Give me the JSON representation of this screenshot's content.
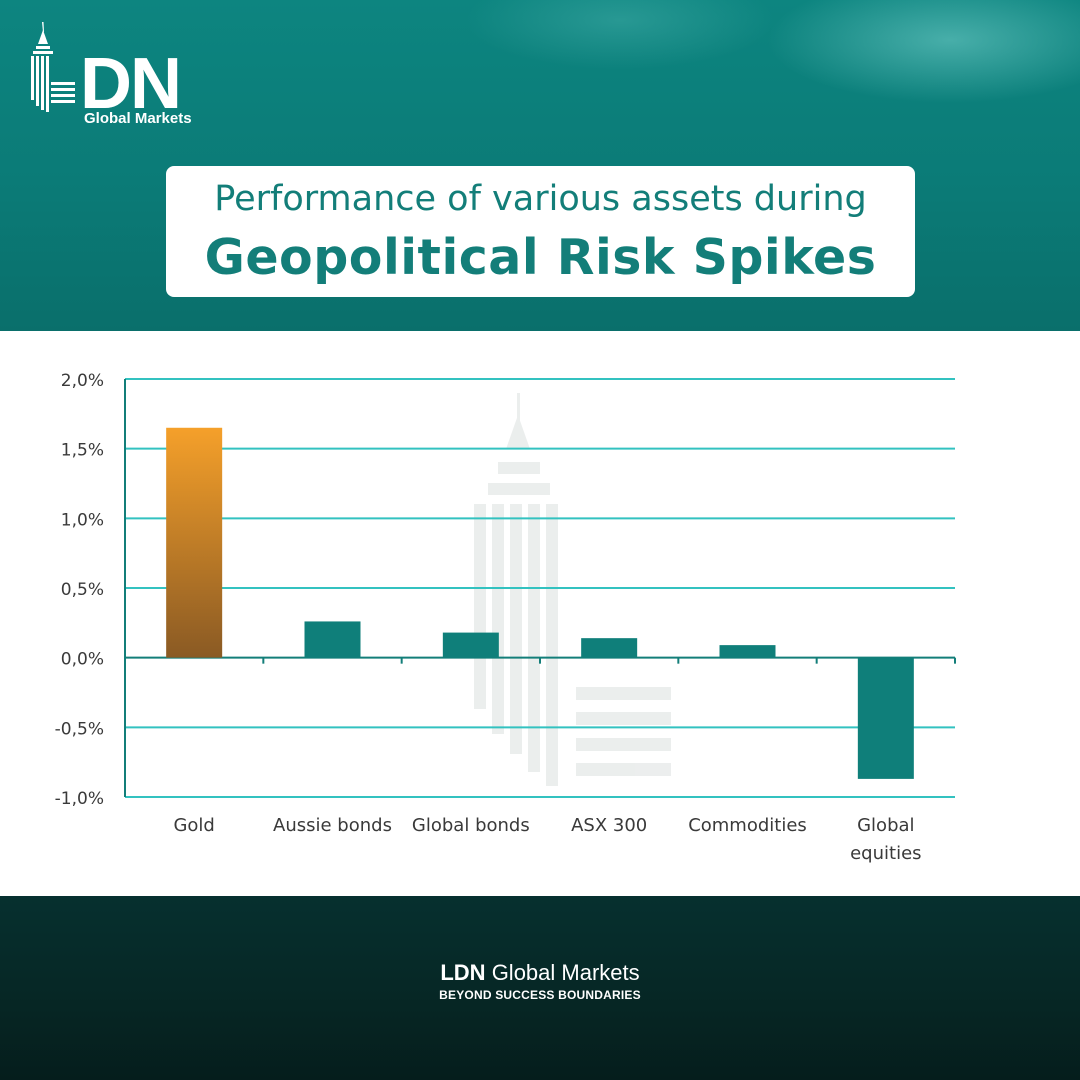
{
  "brand": {
    "logo_text": "DN",
    "logo_subtitle": "Global Markets"
  },
  "headline": {
    "line1": "Performance of various assets during",
    "line2": "Geopolitical Risk Spikes"
  },
  "colors": {
    "teal": "#0d8580",
    "title_text": "#137e79",
    "bar_teal": "#0f7f7a",
    "gold_top": "#f5a02a",
    "gold_bottom": "#8a5a24",
    "grid": "#33c2c0",
    "axis": "#137e79"
  },
  "chart_data": {
    "type": "bar",
    "categories": [
      "Gold",
      "Aussie bonds",
      "Global bonds",
      "ASX 300",
      "Commodities",
      "Global equities"
    ],
    "category_label_lines": [
      [
        "Gold"
      ],
      [
        "Aussie bonds"
      ],
      [
        "Global bonds"
      ],
      [
        "ASX 300"
      ],
      [
        "Commodities"
      ],
      [
        "Global",
        "equities"
      ]
    ],
    "values": [
      1.65,
      0.26,
      0.18,
      0.14,
      0.09,
      -0.87
    ],
    "value_unit": "%",
    "ylim": [
      -1.0,
      2.0
    ],
    "yticks": [
      2.0,
      1.5,
      1.0,
      0.5,
      0.0,
      -0.5,
      -1.0
    ],
    "ytick_labels": [
      "2,0%",
      "1,5%",
      "1,0%",
      "0,5%",
      "0,0%",
      "-0,5%",
      "-1,0%"
    ],
    "highlight_category": "Gold",
    "grid": true,
    "title": "",
    "xlabel": "",
    "ylabel": ""
  },
  "footer": {
    "brand_bold": "LDN",
    "brand_rest": " Global Markets",
    "tagline": "BEYOND SUCCESS BOUNDARIES"
  }
}
